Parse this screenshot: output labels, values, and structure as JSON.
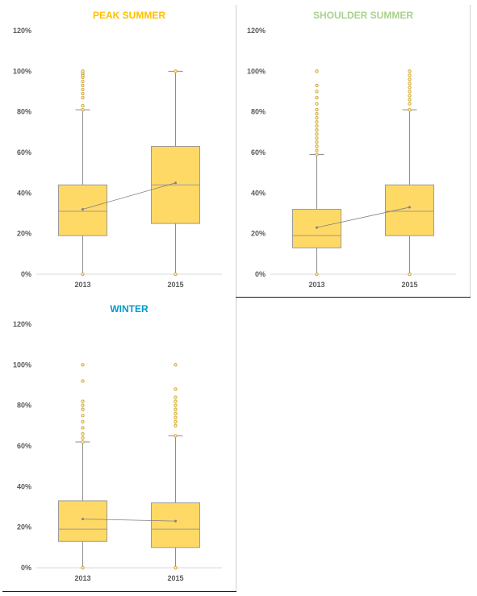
{
  "chart_data": [
    {
      "type": "box",
      "title": "PEAK SUMMER",
      "title_color": "#FFC000",
      "categories": [
        "2013",
        "2015"
      ],
      "yticks": [
        "0%",
        "20%",
        "40%",
        "60%",
        "80%",
        "100%",
        "120%"
      ],
      "ylim": [
        0,
        120
      ],
      "box_color": "#FFD966",
      "outlier_color": "#C9A227",
      "boxes": [
        {
          "category": "2013",
          "min": 0,
          "q1": 19,
          "median": 31,
          "q3": 44,
          "max": 81,
          "mean": 32,
          "outliers": [
            83,
            87,
            89,
            91,
            93,
            95,
            97,
            98,
            99,
            100
          ]
        },
        {
          "category": "2015",
          "min": 0,
          "q1": 25,
          "median": 44,
          "q3": 63,
          "max": 100,
          "mean": 45,
          "outliers": []
        }
      ]
    },
    {
      "type": "box",
      "title": "SHOULDER SUMMER",
      "title_color": "#A9D18E",
      "categories": [
        "2013",
        "2015"
      ],
      "yticks": [
        "0%",
        "20%",
        "40%",
        "60%",
        "80%",
        "100%",
        "120%"
      ],
      "ylim": [
        0,
        120
      ],
      "box_color": "#FFD966",
      "outlier_color": "#C9A227",
      "boxes": [
        {
          "category": "2013",
          "min": 0,
          "q1": 13,
          "median": 19,
          "q3": 32,
          "max": 59,
          "mean": 23,
          "outliers": [
            61,
            63,
            65,
            67,
            69,
            71,
            73,
            75,
            77,
            79,
            81,
            84,
            87,
            90,
            93,
            100
          ]
        },
        {
          "category": "2015",
          "min": 0,
          "q1": 19,
          "median": 31,
          "q3": 44,
          "max": 81,
          "mean": 33,
          "outliers": [
            84,
            86,
            88,
            90,
            92,
            94,
            96,
            98,
            100
          ]
        }
      ]
    },
    {
      "type": "box",
      "title": "WINTER",
      "title_color": "#0099CC",
      "categories": [
        "2013",
        "2015"
      ],
      "yticks": [
        "0%",
        "20%",
        "40%",
        "60%",
        "80%",
        "100%",
        "120%"
      ],
      "ylim": [
        0,
        120
      ],
      "box_color": "#FFD966",
      "outlier_color": "#C9A227",
      "boxes": [
        {
          "category": "2013",
          "min": 0,
          "q1": 13,
          "median": 19,
          "q3": 33,
          "max": 62,
          "mean": 24,
          "outliers": [
            64,
            66,
            69,
            72,
            75,
            78,
            80,
            82,
            92,
            100
          ]
        },
        {
          "category": "2015",
          "min": 0,
          "q1": 10,
          "median": 19,
          "q3": 32,
          "max": 65,
          "mean": 23,
          "outliers": [
            70,
            72,
            74,
            76,
            78,
            80,
            82,
            84,
            88,
            100
          ]
        }
      ]
    }
  ]
}
